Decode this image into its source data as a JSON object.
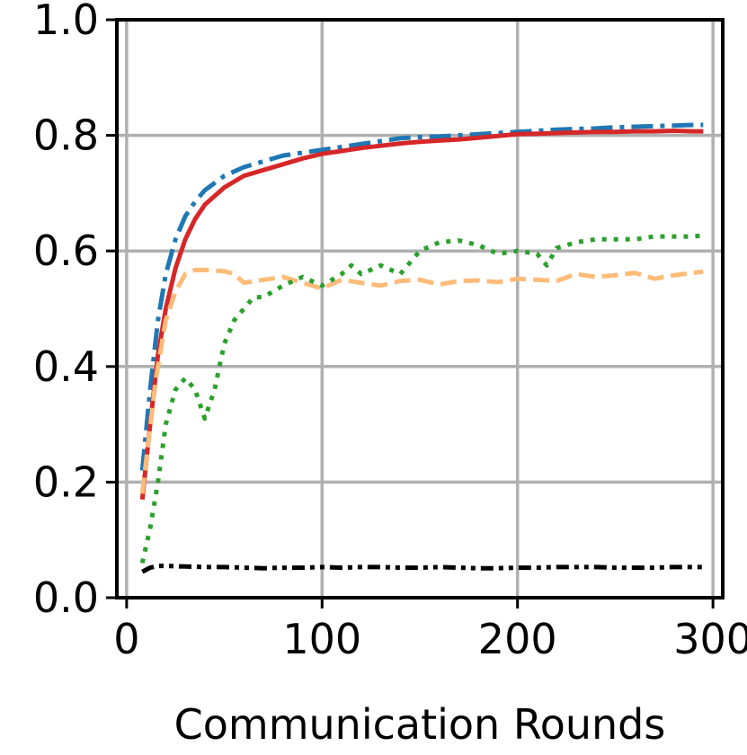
{
  "chart_data": {
    "type": "line",
    "title": "",
    "xlabel": "Communication Rounds",
    "ylabel": "",
    "xlim": [
      -5,
      305
    ],
    "ylim": [
      0.0,
      1.0
    ],
    "grid": true,
    "legend": "none",
    "xticks": [
      0,
      100,
      200,
      300
    ],
    "xtick_labels": [
      "0",
      "100",
      "200",
      "300"
    ],
    "yticks": [
      0.0,
      0.2,
      0.4,
      0.6,
      0.8,
      1.0
    ],
    "ytick_labels": [
      "0.0",
      "0.2",
      "0.4",
      "0.6",
      "0.8",
      "1.0"
    ],
    "series": [
      {
        "color": "#1f77b4",
        "style": "dashdot",
        "x": [
          8,
          12,
          16,
          20,
          25,
          30,
          35,
          40,
          50,
          60,
          70,
          80,
          90,
          100,
          110,
          120,
          130,
          140,
          150,
          160,
          170,
          180,
          190,
          200,
          210,
          220,
          230,
          240,
          250,
          260,
          270,
          280,
          290,
          295
        ],
        "y": [
          0.22,
          0.36,
          0.48,
          0.56,
          0.62,
          0.66,
          0.685,
          0.705,
          0.73,
          0.745,
          0.755,
          0.765,
          0.77,
          0.775,
          0.78,
          0.785,
          0.79,
          0.795,
          0.797,
          0.798,
          0.8,
          0.802,
          0.804,
          0.806,
          0.808,
          0.81,
          0.811,
          0.812,
          0.814,
          0.815,
          0.816,
          0.817,
          0.818,
          0.818
        ]
      },
      {
        "color": "#d62728",
        "style": "solid",
        "x": [
          8,
          12,
          16,
          20,
          25,
          30,
          35,
          40,
          50,
          60,
          70,
          80,
          90,
          100,
          110,
          120,
          130,
          140,
          150,
          160,
          170,
          180,
          190,
          200,
          210,
          220,
          230,
          240,
          250,
          260,
          270,
          280,
          290,
          295
        ],
        "y": [
          0.17,
          0.3,
          0.42,
          0.5,
          0.57,
          0.62,
          0.655,
          0.68,
          0.71,
          0.73,
          0.74,
          0.75,
          0.76,
          0.768,
          0.773,
          0.778,
          0.782,
          0.786,
          0.789,
          0.791,
          0.793,
          0.796,
          0.799,
          0.802,
          0.803,
          0.804,
          0.805,
          0.806,
          0.806,
          0.807,
          0.807,
          0.808,
          0.807,
          0.807
        ]
      },
      {
        "color": "#ffbb78",
        "style": "dashed",
        "x": [
          8,
          15,
          20,
          25,
          30,
          35,
          40,
          45,
          50,
          55,
          60,
          70,
          80,
          90,
          100,
          110,
          120,
          130,
          140,
          150,
          160,
          170,
          180,
          190,
          200,
          210,
          220,
          230,
          240,
          250,
          260,
          270,
          280,
          290,
          295
        ],
        "y": [
          0.18,
          0.38,
          0.48,
          0.53,
          0.56,
          0.567,
          0.567,
          0.566,
          0.565,
          0.56,
          0.545,
          0.55,
          0.555,
          0.545,
          0.535,
          0.55,
          0.545,
          0.54,
          0.548,
          0.55,
          0.542,
          0.548,
          0.549,
          0.546,
          0.552,
          0.55,
          0.548,
          0.56,
          0.555,
          0.558,
          0.562,
          0.552,
          0.558,
          0.562,
          0.564
        ]
      },
      {
        "color": "#2ca02c",
        "style": "dotted",
        "x": [
          8,
          12,
          16,
          20,
          25,
          30,
          35,
          40,
          45,
          50,
          55,
          60,
          65,
          70,
          75,
          80,
          90,
          100,
          110,
          115,
          120,
          130,
          140,
          150,
          160,
          170,
          180,
          190,
          200,
          210,
          215,
          220,
          230,
          240,
          250,
          260,
          270,
          280,
          290,
          295
        ],
        "y": [
          0.06,
          0.12,
          0.2,
          0.3,
          0.36,
          0.38,
          0.36,
          0.31,
          0.36,
          0.44,
          0.48,
          0.5,
          0.52,
          0.52,
          0.53,
          0.54,
          0.555,
          0.54,
          0.56,
          0.575,
          0.56,
          0.575,
          0.56,
          0.6,
          0.615,
          0.618,
          0.61,
          0.595,
          0.6,
          0.595,
          0.575,
          0.605,
          0.615,
          0.62,
          0.62,
          0.62,
          0.625,
          0.625,
          0.625,
          0.627
        ]
      },
      {
        "color": "#000000",
        "style": "dashdotdot",
        "x": [
          8,
          12,
          16,
          20,
          30,
          40,
          50,
          60,
          70,
          80,
          90,
          100,
          110,
          120,
          130,
          140,
          150,
          160,
          170,
          180,
          190,
          200,
          210,
          220,
          230,
          240,
          250,
          260,
          270,
          280,
          290,
          295
        ],
        "y": [
          0.045,
          0.052,
          0.055,
          0.055,
          0.054,
          0.053,
          0.053,
          0.052,
          0.051,
          0.052,
          0.052,
          0.053,
          0.052,
          0.053,
          0.053,
          0.052,
          0.052,
          0.053,
          0.052,
          0.051,
          0.051,
          0.052,
          0.052,
          0.053,
          0.053,
          0.053,
          0.052,
          0.052,
          0.052,
          0.053,
          0.053,
          0.053
        ]
      }
    ]
  }
}
